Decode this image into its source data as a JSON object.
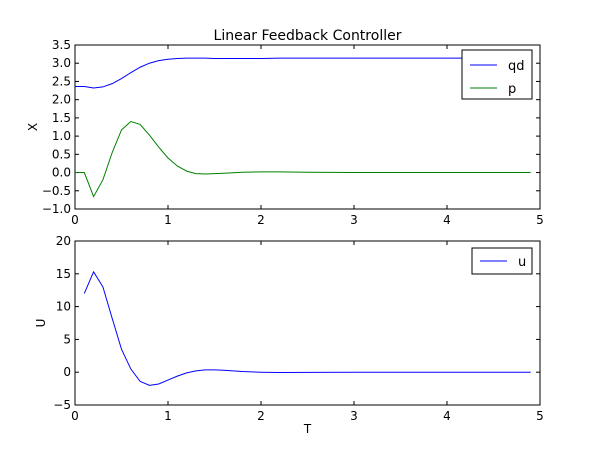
{
  "chart_data": [
    {
      "type": "line",
      "title": "Linear Feedback Controller",
      "xlabel": "",
      "ylabel": "X",
      "xlim": [
        0,
        5
      ],
      "ylim": [
        -1.0,
        3.5
      ],
      "xticks": [
        "0",
        "1",
        "2",
        "3",
        "4",
        "5"
      ],
      "yticks": [
        "−1.0",
        "−0.5",
        "0.0",
        "0.5",
        "1.0",
        "1.5",
        "2.0",
        "2.5",
        "3.0",
        "3.5"
      ],
      "grid": false,
      "legend": "top-right",
      "x": [
        0.0,
        0.1,
        0.2,
        0.3,
        0.4,
        0.5,
        0.6,
        0.7,
        0.8,
        0.9,
        1.0,
        1.1,
        1.2,
        1.3,
        1.4,
        1.5,
        1.6,
        1.8,
        2.0,
        2.2,
        2.5,
        3.0,
        3.5,
        4.0,
        4.5,
        4.9
      ],
      "series": [
        {
          "name": "qd",
          "color": "#0000ff",
          "values": [
            2.36,
            2.36,
            2.32,
            2.35,
            2.44,
            2.58,
            2.74,
            2.89,
            3.0,
            3.07,
            3.11,
            3.13,
            3.14,
            3.14,
            3.14,
            3.13,
            3.13,
            3.13,
            3.13,
            3.14,
            3.14,
            3.14,
            3.14,
            3.14,
            3.14,
            3.14
          ]
        },
        {
          "name": "p",
          "color": "#008000",
          "values": [
            0.0,
            0.0,
            -0.66,
            -0.2,
            0.55,
            1.17,
            1.4,
            1.32,
            1.03,
            0.7,
            0.4,
            0.18,
            0.04,
            -0.03,
            -0.04,
            -0.03,
            -0.02,
            0.01,
            0.02,
            0.02,
            0.01,
            0.0,
            0.0,
            0.0,
            0.0,
            0.0
          ]
        }
      ]
    },
    {
      "type": "line",
      "title": "",
      "xlabel": "T",
      "ylabel": "U",
      "xlim": [
        0,
        5
      ],
      "ylim": [
        -5,
        20
      ],
      "xticks": [
        "0",
        "1",
        "2",
        "3",
        "4",
        "5"
      ],
      "yticks": [
        "−5",
        "0",
        "5",
        "10",
        "15",
        "20"
      ],
      "grid": false,
      "legend": "top-right",
      "x": [
        0.1,
        0.2,
        0.3,
        0.4,
        0.5,
        0.6,
        0.7,
        0.8,
        0.9,
        1.0,
        1.1,
        1.2,
        1.3,
        1.4,
        1.5,
        1.6,
        1.8,
        2.0,
        2.2,
        2.5,
        3.0,
        3.5,
        4.0,
        4.5,
        4.9
      ],
      "series": [
        {
          "name": "u",
          "color": "#0000ff",
          "values": [
            12.0,
            15.3,
            13.0,
            8.2,
            3.5,
            0.5,
            -1.4,
            -2.0,
            -1.8,
            -1.2,
            -0.6,
            -0.1,
            0.2,
            0.35,
            0.35,
            0.3,
            0.1,
            0.0,
            -0.05,
            -0.03,
            0.0,
            0.0,
            0.0,
            0.0,
            0.0
          ]
        }
      ]
    }
  ]
}
